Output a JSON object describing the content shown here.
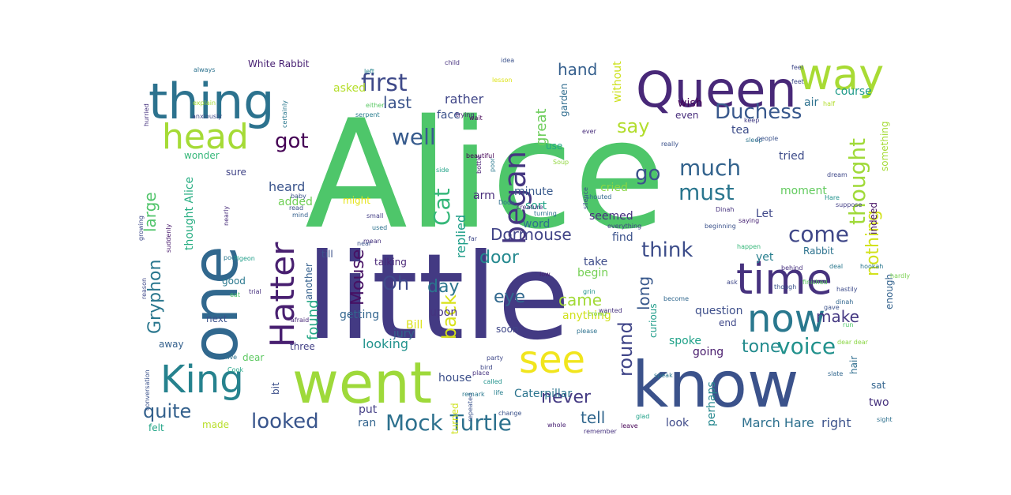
{
  "cloud": {
    "words": [
      {
        "text": "Alice",
        "color": "#4ec66a"
      },
      {
        "text": "little",
        "color": "#433a83"
      },
      {
        "text": "one",
        "color": "#31688e"
      },
      {
        "text": "know",
        "color": "#3b528b"
      },
      {
        "text": "went",
        "color": "#9ed93a"
      },
      {
        "text": "Queen",
        "color": "#482878"
      },
      {
        "text": "thing",
        "color": "#2c728e"
      },
      {
        "text": "time",
        "color": "#46327e"
      },
      {
        "text": "way",
        "color": "#a8db34"
      },
      {
        "text": "Hatter",
        "color": "#481f70"
      },
      {
        "text": "now",
        "color": "#2a788e"
      },
      {
        "text": "head",
        "color": "#a5db36"
      },
      {
        "text": "see",
        "color": "#f1e51d"
      },
      {
        "text": "King",
        "color": "#26828e"
      },
      {
        "text": "began",
        "color": "#453781"
      },
      {
        "text": "Mock Turtle",
        "color": "#2d718e"
      },
      {
        "text": "first",
        "color": "#3e4989"
      },
      {
        "text": "voice",
        "color": "#21918c"
      },
      {
        "text": "come",
        "color": "#3f4788"
      },
      {
        "text": "thought",
        "color": "#a0da39"
      },
      {
        "text": "much",
        "color": "#33638d"
      },
      {
        "text": "must",
        "color": "#2a768e"
      },
      {
        "text": "Duchess",
        "color": "#38588c"
      },
      {
        "text": "Gryphon",
        "color": "#2a778e"
      },
      {
        "text": "think",
        "color": "#3d4d8a"
      },
      {
        "text": "Cat",
        "color": "#35b779"
      },
      {
        "text": "well",
        "color": "#375b8d"
      },
      {
        "text": "got",
        "color": "#440154"
      },
      {
        "text": "looked",
        "color": "#39558c"
      },
      {
        "text": "quite",
        "color": "#34618d"
      },
      {
        "text": "back",
        "color": "#d8e219"
      },
      {
        "text": "Dormouse",
        "color": "#414487"
      },
      {
        "text": "round",
        "color": "#404588"
      },
      {
        "text": "Mouse",
        "color": "#471164"
      },
      {
        "text": "large",
        "color": "#50c46a"
      },
      {
        "text": "say",
        "color": "#b2dd2d"
      },
      {
        "text": "go",
        "color": "#3b528b"
      },
      {
        "text": "never",
        "color": "#443a83"
      },
      {
        "text": "nothing",
        "color": "#d2e21b"
      },
      {
        "text": "Oh",
        "color": "#3e4a89"
      },
      {
        "text": "tone",
        "color": "#228b8d"
      },
      {
        "text": "hand",
        "color": "#355f8d"
      },
      {
        "text": "eye",
        "color": "#31688e"
      },
      {
        "text": "day",
        "color": "#2b758e"
      },
      {
        "text": "door",
        "color": "#23888e"
      },
      {
        "text": "last",
        "color": "#3a538b"
      },
      {
        "text": "great",
        "color": "#6ccd5a"
      },
      {
        "text": "long",
        "color": "#38588c"
      },
      {
        "text": "came",
        "color": "#a2da37"
      },
      {
        "text": "tell",
        "color": "#31678e"
      },
      {
        "text": "make",
        "color": "#453882"
      },
      {
        "text": "found",
        "color": "#22a785"
      },
      {
        "text": "replied",
        "color": "#1f9e89"
      },
      {
        "text": "thought Alice",
        "color": "#26ad81"
      },
      {
        "text": "March Hare",
        "color": "#2d708e"
      },
      {
        "text": "right",
        "color": "#3b528b"
      },
      {
        "text": "White Rabbit",
        "color": "#482173"
      },
      {
        "text": "rather",
        "color": "#404688"
      },
      {
        "text": "asked",
        "color": "#b5de2b"
      },
      {
        "text": "Caterpillar",
        "color": "#2b748e"
      },
      {
        "text": "looking",
        "color": "#20928c"
      },
      {
        "text": "getting",
        "color": "#32658e"
      },
      {
        "text": "question",
        "color": "#3d4e8a"
      },
      {
        "text": "anything",
        "color": "#d0e11c"
      },
      {
        "text": "spoke",
        "color": "#1fa188"
      },
      {
        "text": "going",
        "color": "#481b6d"
      },
      {
        "text": "heard",
        "color": "#3a548c"
      },
      {
        "text": "added",
        "color": "#70cf57"
      },
      {
        "text": "sure",
        "color": "#414487"
      },
      {
        "text": "wonder",
        "color": "#35b779"
      },
      {
        "text": "seemed",
        "color": "#46307e"
      },
      {
        "text": "cried",
        "color": "#8bd646"
      },
      {
        "text": "minute",
        "color": "#38598c"
      },
      {
        "text": "sort",
        "color": "#20a386"
      },
      {
        "text": "word",
        "color": "#2e6e8e"
      },
      {
        "text": "arm",
        "color": "#472c7a"
      },
      {
        "text": "moment",
        "color": "#63cb5f"
      },
      {
        "text": "tried",
        "color": "#3e4c8a"
      },
      {
        "text": "indeed",
        "color": "#471365"
      },
      {
        "text": "Let",
        "color": "#3f4889"
      },
      {
        "text": "yet",
        "color": "#277f8e"
      },
      {
        "text": "find",
        "color": "#3b528b"
      },
      {
        "text": "begin",
        "color": "#75d054"
      },
      {
        "text": "take",
        "color": "#3e4c8a"
      },
      {
        "text": "upon",
        "color": "#46337f"
      },
      {
        "text": "Bill",
        "color": "#dde318"
      },
      {
        "text": "till",
        "color": "#3b528b"
      },
      {
        "text": "good",
        "color": "#2a788e"
      },
      {
        "text": "next",
        "color": "#3b518b"
      },
      {
        "text": "away",
        "color": "#34618d"
      },
      {
        "text": "three",
        "color": "#424086"
      },
      {
        "text": "dear",
        "color": "#5ec962"
      },
      {
        "text": "jury",
        "color": "#33638d"
      },
      {
        "text": "house",
        "color": "#3c4f8a"
      },
      {
        "text": "put",
        "color": "#433e85"
      },
      {
        "text": "ran",
        "color": "#32648e"
      },
      {
        "text": "felt",
        "color": "#20a486"
      },
      {
        "text": "made",
        "color": "#b8de29"
      },
      {
        "text": "look",
        "color": "#3e4a89"
      },
      {
        "text": "perhaps",
        "color": "#24878e"
      },
      {
        "text": "two",
        "color": "#46327e"
      },
      {
        "text": "sat",
        "color": "#32648e"
      },
      {
        "text": "hair",
        "color": "#2e6d8e"
      },
      {
        "text": "air",
        "color": "#2d718e"
      },
      {
        "text": "tea",
        "color": "#3d4d8a"
      },
      {
        "text": "even",
        "color": "#472d7b"
      },
      {
        "text": "wish",
        "color": "#440256"
      },
      {
        "text": "without",
        "color": "#cde11d"
      },
      {
        "text": "enough",
        "color": "#33628d"
      },
      {
        "text": "Rabbit",
        "color": "#2c728e"
      },
      {
        "text": "something",
        "color": "#a5db36"
      },
      {
        "text": "course",
        "color": "#1f9a8a"
      },
      {
        "text": "curious",
        "color": "#1e9c89"
      },
      {
        "text": "might",
        "color": "#e5e419"
      },
      {
        "text": "talking",
        "color": "#482576"
      },
      {
        "text": "another",
        "color": "#34608d"
      },
      {
        "text": "garden",
        "color": "#2f6c8e"
      },
      {
        "text": "use",
        "color": "#22a884"
      },
      {
        "text": "soon",
        "color": "#3f4788"
      },
      {
        "text": "remember",
        "color": "#46327e"
      },
      {
        "text": "poor",
        "color": "#2a788e"
      },
      {
        "text": "suddenly",
        "color": "#481a6c"
      },
      {
        "text": "mind",
        "color": "#34608d"
      },
      {
        "text": "baby",
        "color": "#3b528b"
      },
      {
        "text": "everything",
        "color": "#424186"
      },
      {
        "text": "turned",
        "color": "#cde11d"
      },
      {
        "text": "face",
        "color": "#3b528b"
      },
      {
        "text": "hardly",
        "color": "#7ad151"
      },
      {
        "text": "Dodo",
        "color": "#2e6e8e"
      },
      {
        "text": "wait",
        "color": "#440154"
      },
      {
        "text": "end",
        "color": "#3f4889"
      },
      {
        "text": "bit",
        "color": "#3c4f8a"
      },
      {
        "text": "trial",
        "color": "#46307e"
      },
      {
        "text": "always",
        "color": "#2c728e"
      },
      {
        "text": "side",
        "color": "#1fa287"
      },
      {
        "text": "half",
        "color": "#b2dd2d"
      },
      {
        "text": "ever",
        "color": "#472c7a"
      },
      {
        "text": "feet",
        "color": "#3e4a89"
      },
      {
        "text": "child",
        "color": "#46307e"
      },
      {
        "text": "idea",
        "color": "#3b528b"
      },
      {
        "text": "left",
        "color": "#25848e"
      },
      {
        "text": "Hare",
        "color": "#20928c"
      },
      {
        "text": "beautiful",
        "color": "#440154"
      },
      {
        "text": "Soup",
        "color": "#93d741"
      },
      {
        "text": "certainly",
        "color": "#2a788e"
      },
      {
        "text": "anxiously",
        "color": "#3e4989"
      },
      {
        "text": "explain",
        "color": "#a5db36"
      },
      {
        "text": "trying",
        "color": "#482475"
      },
      {
        "text": "serpent",
        "color": "#287d8e"
      },
      {
        "text": "either",
        "color": "#5ac864"
      },
      {
        "text": "hurried",
        "color": "#46337f"
      },
      {
        "text": "slate",
        "color": "#31678e"
      },
      {
        "text": "speak",
        "color": "#2a768e"
      },
      {
        "text": "called",
        "color": "#20928c"
      },
      {
        "text": "glad",
        "color": "#1fa188"
      },
      {
        "text": "leave",
        "color": "#440154"
      },
      {
        "text": "sight",
        "color": "#2d708e"
      },
      {
        "text": "lesson",
        "color": "#dde318"
      },
      {
        "text": "party",
        "color": "#3f4889"
      },
      {
        "text": "change",
        "color": "#3b528b"
      },
      {
        "text": "bird",
        "color": "#3f4788"
      },
      {
        "text": "life",
        "color": "#277f8e"
      },
      {
        "text": "whole",
        "color": "#482173"
      },
      {
        "text": "crowd",
        "color": "#7ad151"
      },
      {
        "text": "happen",
        "color": "#35b779"
      },
      {
        "text": "become",
        "color": "#31688e"
      },
      {
        "text": "behind",
        "color": "#46307e"
      },
      {
        "text": "hastily",
        "color": "#3e4c8a"
      },
      {
        "text": "Pigeon",
        "color": "#1f9e89"
      },
      {
        "text": "Cook",
        "color": "#20a486"
      },
      {
        "text": "live",
        "color": "#2d718e"
      },
      {
        "text": "conversation",
        "color": "#3b528b"
      },
      {
        "text": "nearly",
        "color": "#472c7a"
      },
      {
        "text": "reason",
        "color": "#3f4889"
      },
      {
        "text": "eat",
        "color": "#4ec66a"
      },
      {
        "text": "growing",
        "color": "#3e4989"
      },
      {
        "text": "pool",
        "color": "#2a788e"
      },
      {
        "text": "afraid",
        "color": "#482878"
      },
      {
        "text": "read",
        "color": "#3b528b"
      },
      {
        "text": "small",
        "color": "#433e85"
      },
      {
        "text": "used",
        "color": "#2c728e"
      },
      {
        "text": "near",
        "color": "#3b528b"
      },
      {
        "text": "mean",
        "color": "#46327e"
      },
      {
        "text": "bottle",
        "color": "#482173"
      },
      {
        "text": "finished",
        "color": "#5ec962"
      },
      {
        "text": "beginning",
        "color": "#3b528b"
      },
      {
        "text": "deal",
        "color": "#2a788e"
      },
      {
        "text": "suppose",
        "color": "#433e85"
      },
      {
        "text": "dream",
        "color": "#3f4889"
      },
      {
        "text": "saying",
        "color": "#482475"
      },
      {
        "text": "silence",
        "color": "#3e4c8a"
      },
      {
        "text": "creature",
        "color": "#46327e"
      },
      {
        "text": "turning",
        "color": "#2d718e"
      },
      {
        "text": "shouted",
        "color": "#31688e"
      },
      {
        "text": "really",
        "color": "#3b528b"
      },
      {
        "text": "sleep",
        "color": "#2c728e"
      },
      {
        "text": "ask",
        "color": "#3f4788"
      },
      {
        "text": "wanted",
        "color": "#46307e"
      },
      {
        "text": "grin",
        "color": "#20928c"
      },
      {
        "text": "repeated",
        "color": "#3b528b"
      },
      {
        "text": "remark",
        "color": "#2a788e"
      },
      {
        "text": "low",
        "color": "#482173"
      },
      {
        "text": "far",
        "color": "#3e4989"
      },
      {
        "text": "place",
        "color": "#46337f"
      },
      {
        "text": "dinah",
        "color": "#31678e"
      },
      {
        "text": "hookah",
        "color": "#2a768e"
      },
      {
        "text": "though",
        "color": "#3b528b"
      },
      {
        "text": "run",
        "color": "#4ec66a"
      },
      {
        "text": "gave",
        "color": "#3b528b"
      },
      {
        "text": "keep",
        "color": "#433e85"
      },
      {
        "text": "Dinah",
        "color": "#46327e"
      },
      {
        "text": "please",
        "color": "#2d718e"
      },
      {
        "text": "feel",
        "color": "#3f4889"
      },
      {
        "text": "people",
        "color": "#3b528b"
      },
      {
        "text": "dear dear",
        "color": "#8bd646"
      }
    ]
  }
}
